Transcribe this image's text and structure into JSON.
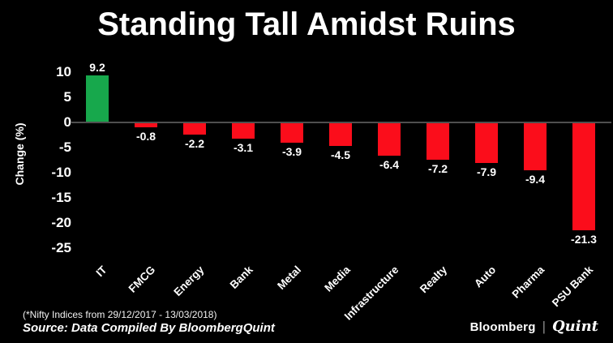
{
  "title": "Standing Tall Amidst Ruins",
  "chart_data": {
    "type": "bar",
    "categories": [
      "IT",
      "FMCG",
      "Energy",
      "Bank",
      "Metal",
      "Media",
      "Infrastructure",
      "Realty",
      "Auto",
      "Pharma",
      "PSU Bank"
    ],
    "values": [
      9.2,
      -0.8,
      -2.2,
      -3.1,
      -3.9,
      -4.5,
      -6.4,
      -7.2,
      -7.9,
      -9.4,
      -21.3
    ],
    "value_labels": [
      "9.2",
      "-0.8",
      "-2.2",
      "-3.1",
      "-3.9",
      "-4.5",
      "-6.4",
      "-7.2",
      "-7.9",
      "-9.4",
      "-21.3"
    ],
    "title": "Standing Tall Amidst Ruins",
    "xlabel": "",
    "ylabel": "Change (%)",
    "yticks": [
      10,
      5,
      0,
      -5,
      -10,
      -15,
      -20,
      -25
    ],
    "ylim": [
      -25,
      10
    ],
    "grid": false,
    "legend": null,
    "colors": {
      "positive": "#17a84c",
      "negative": "#fb0d1b",
      "axis_line": "#4f4f4f",
      "background": "#000000",
      "text": "#ffffff"
    }
  },
  "footer": {
    "note": "(*Nifty Indices from 29/12/2017 - 13/03/2018)",
    "source": "Source: Data Compiled By BloombergQuint"
  },
  "logo": {
    "bloomberg": "Bloomberg",
    "separator": "|",
    "quint": "Quint"
  }
}
